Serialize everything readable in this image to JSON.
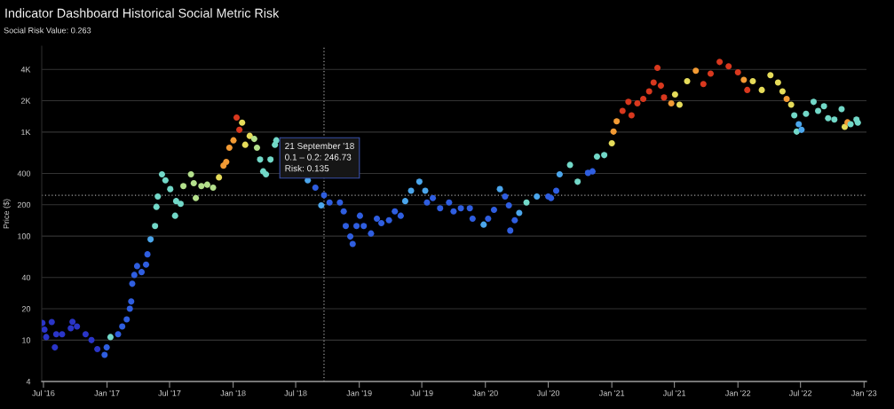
{
  "chart_data": {
    "type": "scatter",
    "title": "Indicator Dashboard Historical Social Metric Risk",
    "subtitle": "Social Risk Value: 0.263",
    "ylabel": "Price ($)",
    "log": true,
    "grid": "y",
    "marker": "circle",
    "xlim": [
      "2016-06-26",
      "2023-01-08"
    ],
    "ylim": [
      4,
      6700
    ],
    "xticks": [
      {
        "value": "2016-07-01",
        "label": "Jul '16"
      },
      {
        "value": "2017-01-01",
        "label": "Jan '17"
      },
      {
        "value": "2017-07-01",
        "label": "Jul '17"
      },
      {
        "value": "2018-01-01",
        "label": "Jan '18"
      },
      {
        "value": "2018-07-01",
        "label": "Jul '18"
      },
      {
        "value": "2019-01-01",
        "label": "Jan '19"
      },
      {
        "value": "2019-07-01",
        "label": "Jul '19"
      },
      {
        "value": "2020-01-01",
        "label": "Jan '20"
      },
      {
        "value": "2020-07-01",
        "label": "Jul '20"
      },
      {
        "value": "2021-01-01",
        "label": "Jan '21"
      },
      {
        "value": "2021-07-01",
        "label": "Jul '21"
      },
      {
        "value": "2022-01-01",
        "label": "Jan '22"
      },
      {
        "value": "2022-07-01",
        "label": "Jul '22"
      },
      {
        "value": "2023-01-01",
        "label": "Jan '23"
      }
    ],
    "yticks": [
      4,
      10,
      20,
      40,
      100,
      200,
      400,
      {
        "value": 1000,
        "label": "1K"
      },
      {
        "value": 2000,
        "label": "2K"
      },
      {
        "value": 4000,
        "label": "4K"
      }
    ],
    "ref_lines": [
      {
        "axis": "x",
        "value": "2018-09-21",
        "color": "#9a9a9a",
        "line_style": "dotted"
      },
      {
        "axis": "y",
        "value": 246.73,
        "color": "#9a9a9a",
        "line_style": "dotted"
      }
    ],
    "annotations": [
      "21 September '18\n0.1 – 0.2: 246.73\nRisk: 0.135"
    ],
    "series": [
      {
        "x": [
          "2016-06-28",
          "2016-07-04",
          "2016-07-09",
          "2016-07-25",
          "2016-08-03",
          "2016-08-07",
          "2016-08-24",
          "2016-09-18",
          "2016-09-23",
          "2016-10-06",
          "2016-10-31",
          "2016-11-17",
          "2016-12-04",
          "2016-12-25",
          "2016-12-31",
          "2017-01-11",
          "2017-02-02",
          "2017-02-14",
          "2017-02-27",
          "2017-03-08",
          "2017-03-12",
          "2017-03-15",
          "2017-03-21",
          "2017-03-29",
          "2017-04-11",
          "2017-04-24",
          "2017-04-28",
          "2017-05-07",
          "2017-05-20",
          "2017-05-24",
          "2017-05-28",
          "2017-06-09",
          "2017-06-19",
          "2017-07-03",
          "2017-07-17",
          "2017-07-20",
          "2017-08-02",
          "2017-08-10",
          "2017-09-01",
          "2017-09-09",
          "2017-09-15",
          "2017-10-01",
          "2017-10-18",
          "2017-11-04",
          "2017-11-21",
          "2017-12-04",
          "2017-12-12",
          "2017-12-21",
          "2018-01-02",
          "2018-01-11",
          "2018-01-19",
          "2018-01-27",
          "2018-02-05",
          "2018-02-18",
          "2018-03-03",
          "2018-03-11",
          "2018-03-20",
          "2018-03-29",
          "2018-04-06",
          "2018-04-19",
          "2018-05-02",
          "2018-05-06",
          "2018-08-05",
          "2018-08-27",
          "2018-09-13",
          "2018-09-21",
          "2018-10-07",
          "2018-11-06",
          "2018-11-17",
          "2018-11-23",
          "2018-12-06",
          "2018-12-13",
          "2018-12-24",
          "2019-01-03",
          "2019-01-14",
          "2019-02-04",
          "2019-02-21",
          "2019-03-06",
          "2019-03-28",
          "2019-04-14",
          "2019-05-01",
          "2019-05-14",
          "2019-05-31",
          "2019-06-24",
          "2019-07-11",
          "2019-07-16",
          "2019-08-02",
          "2019-08-23",
          "2019-09-18",
          "2019-10-01",
          "2019-10-22",
          "2019-11-17",
          "2019-11-25",
          "2019-12-27",
          "2020-01-09",
          "2020-01-26",
          "2020-02-12",
          "2020-02-27",
          "2020-03-09",
          "2020-03-13",
          "2020-03-26",
          "2020-04-08",
          "2020-04-29",
          "2020-05-29",
          "2020-07-01",
          "2020-07-09",
          "2020-07-24",
          "2020-08-03",
          "2020-09-02",
          "2020-09-24",
          "2020-10-24",
          "2020-11-06",
          "2020-11-19",
          "2020-12-10",
          "2021-01-01",
          "2021-01-06",
          "2021-01-15",
          "2021-02-01",
          "2021-02-18",
          "2021-02-27",
          "2021-03-16",
          "2021-04-02",
          "2021-04-19",
          "2021-05-02",
          "2021-05-13",
          "2021-05-23",
          "2021-06-01",
          "2021-06-22",
          "2021-07-03",
          "2021-07-16",
          "2021-08-07",
          "2021-09-01",
          "2021-09-23",
          "2021-10-14",
          "2021-11-09",
          "2021-12-05",
          "2022-01-01",
          "2022-01-18",
          "2022-01-28",
          "2022-02-13",
          "2022-03-11",
          "2022-04-05",
          "2022-04-27",
          "2022-05-10",
          "2022-05-22",
          "2022-06-04",
          "2022-06-13",
          "2022-06-20",
          "2022-06-26",
          "2022-07-04",
          "2022-07-17",
          "2022-08-08",
          "2022-08-21",
          "2022-09-07",
          "2022-09-19",
          "2022-10-07",
          "2022-10-28",
          "2022-11-06",
          "2022-11-14",
          "2022-11-23",
          "2022-12-10",
          "2022-12-14"
        ],
        "values": [
          14.6,
          12.6,
          10.7,
          14.9,
          8.5,
          11.4,
          11.4,
          13.0,
          15.0,
          13.5,
          11.4,
          10.0,
          8.2,
          7.2,
          8.5,
          10.7,
          11.4,
          13.5,
          15.8,
          20.0,
          23.5,
          34.8,
          42.3,
          51.5,
          45.1,
          53.2,
          66.8,
          92.9,
          125,
          191,
          240,
          392,
          344,
          283,
          157,
          217,
          204,
          302,
          392,
          322,
          232,
          302,
          312,
          292,
          367,
          476,
          516,
          706,
          833,
          1380,
          1050,
          1230,
          755,
          919,
          859,
          706,
          544,
          419,
          392,
          544,
          755,
          833,
          344,
          292,
          197,
          246.73,
          210,
          210,
          173,
          125,
          99,
          84,
          125,
          157,
          125,
          106,
          147,
          133,
          142,
          173,
          157,
          217,
          273,
          333,
          273,
          210,
          232,
          185,
          210,
          173,
          185,
          185,
          147,
          129,
          147,
          179,
          283,
          240,
          197,
          113,
          142,
          167,
          210,
          240,
          240,
          232,
          273,
          392,
          483,
          333,
          405,
          419,
          581,
          600,
          780,
          1010,
          1270,
          1600,
          1950,
          1450,
          1890,
          2080,
          2460,
          2990,
          4140,
          2790,
          2150,
          1890,
          2300,
          1830,
          3080,
          3880,
          2890,
          3640,
          4720,
          4280,
          3750,
          3180,
          2540,
          3080,
          2540,
          3520,
          2990,
          2460,
          2080,
          1830,
          1450,
          1010,
          1190,
          1050,
          1500,
          1950,
          1600,
          1770,
          1360,
          1320,
          1660,
          1120,
          1240,
          1190,
          1320,
          1230
        ],
        "colors": [
          "#2a35c8",
          "#2a35c8",
          "#2a35c8",
          "#2a35c8",
          "#2a35c8",
          "#2a35c8",
          "#2a35c8",
          "#2a35c8",
          "#2a35c8",
          "#2a35c8",
          "#2a35c8",
          "#2a35c8",
          "#2a35c8",
          "#2f5ee0",
          "#2f5ee0",
          "#72d8c8",
          "#2f5ee0",
          "#2f5ee0",
          "#2f5ee0",
          "#2f5ee0",
          "#2f5ee0",
          "#2f5ee0",
          "#2f5ee0",
          "#2f5ee0",
          "#2f5ee0",
          "#2f5ee0",
          "#2f5ee0",
          "#4ba6ec",
          "#72d8c8",
          "#72d8c8",
          "#72d8c8",
          "#72d8c8",
          "#72d8c8",
          "#72d8c8",
          "#72d8c8",
          "#72d8c8",
          "#72d8c8",
          "#b4e08c",
          "#b4e08c",
          "#b4e08c",
          "#b4e08c",
          "#b4e08c",
          "#b4e08c",
          "#b4e08c",
          "#e6dc5a",
          "#f29a34",
          "#f29a34",
          "#f29a34",
          "#f29a34",
          "#d8381e",
          "#d8381e",
          "#e6dc5a",
          "#e6dc5a",
          "#e6dc5a",
          "#b4e08c",
          "#b4e08c",
          "#72d8c8",
          "#72d8c8",
          "#72d8c8",
          "#72d8c8",
          "#72d8c8",
          "#72d8c8",
          "#4ba6ec",
          "#2f5ee0",
          "#4ba6ec",
          "#2f5ee0",
          "#2f5ee0",
          "#2f5ee0",
          "#2f5ee0",
          "#2f5ee0",
          "#2f5ee0",
          "#2f5ee0",
          "#2f5ee0",
          "#2f5ee0",
          "#2f5ee0",
          "#2f5ee0",
          "#2f5ee0",
          "#2f5ee0",
          "#2f5ee0",
          "#2f5ee0",
          "#2f5ee0",
          "#4ba6ec",
          "#4ba6ec",
          "#4ba6ec",
          "#4ba6ec",
          "#2f5ee0",
          "#2f5ee0",
          "#2f5ee0",
          "#2f5ee0",
          "#2f5ee0",
          "#2f5ee0",
          "#2f5ee0",
          "#2f5ee0",
          "#4ba6ec",
          "#2f5ee0",
          "#2f5ee0",
          "#4ba6ec",
          "#2f5ee0",
          "#2f5ee0",
          "#2f5ee0",
          "#2f5ee0",
          "#4ba6ec",
          "#72d8c8",
          "#4ba6ec",
          "#2f5ee0",
          "#2f5ee0",
          "#2f5ee0",
          "#4ba6ec",
          "#72d8c8",
          "#72d8c8",
          "#2f5ee0",
          "#2f5ee0",
          "#72d8c8",
          "#72d8c8",
          "#e6dc5a",
          "#f29a34",
          "#f29a34",
          "#d8381e",
          "#d8381e",
          "#d8381e",
          "#d8381e",
          "#d8381e",
          "#d8381e",
          "#d8381e",
          "#d8381e",
          "#d8381e",
          "#d8381e",
          "#f29a34",
          "#e6dc5a",
          "#e6dc5a",
          "#e6dc5a",
          "#f29a34",
          "#d8381e",
          "#d8381e",
          "#d8381e",
          "#d8381e",
          "#d8381e",
          "#f29a34",
          "#d8381e",
          "#e6dc5a",
          "#e6dc5a",
          "#e6dc5a",
          "#e6dc5a",
          "#e6dc5a",
          "#f29a34",
          "#e6dc5a",
          "#72d8c8",
          "#72d8c8",
          "#4ba6ec",
          "#4ba6ec",
          "#72d8c8",
          "#72d8c8",
          "#72d8c8",
          "#72d8c8",
          "#72d8c8",
          "#72d8c8",
          "#72d8c8",
          "#e6dc5a",
          "#f29a34",
          "#72d8c8",
          "#72d8c8",
          "#72d8c8"
        ]
      }
    ]
  }
}
